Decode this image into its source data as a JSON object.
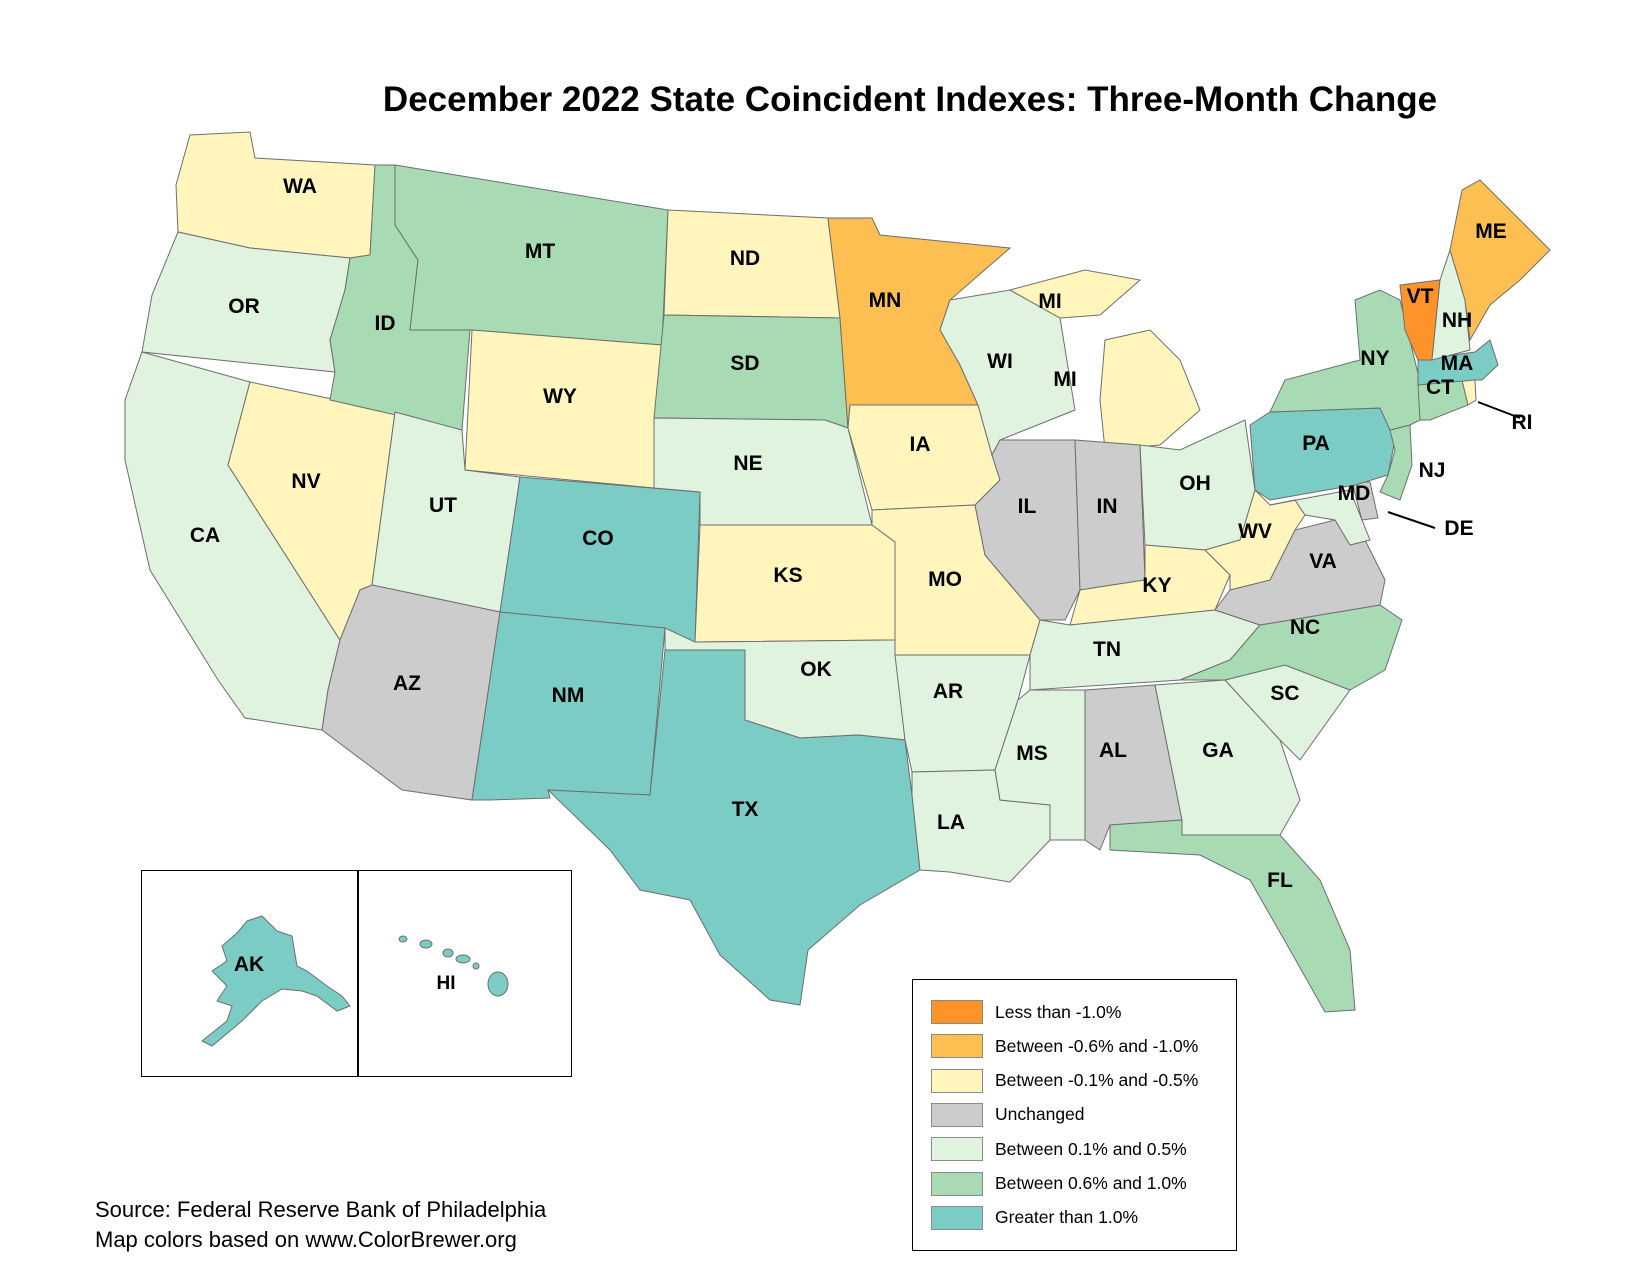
{
  "title": "December 2022 State Coincident Indexes: Three-Month Change",
  "legend": [
    {
      "key": "lt_-1.0",
      "label": "Less than -1.0%",
      "color": "#fd9329"
    },
    {
      "key": "-0.6_-1.0",
      "label": "Between -0.6% and -1.0%",
      "color": "#fdbf51"
    },
    {
      "key": "-0.1_-0.5",
      "label": "Between -0.1% and -0.5%",
      "color": "#fff5bd"
    },
    {
      "key": "unchanged",
      "label": "Unchanged",
      "color": "#cccccc"
    },
    {
      "key": "0.1_0.5",
      "label": "Between 0.1% and 0.5%",
      "color": "#e0f3de"
    },
    {
      "key": "0.6_1.0",
      "label": "Between 0.6% and 1.0%",
      "color": "#a8dbb4"
    },
    {
      "key": "gt_1.0",
      "label": "Greater than 1.0%",
      "color": "#7accc4"
    }
  ],
  "states": [
    {
      "abbr": "WA",
      "category": "-0.1_-0.5"
    },
    {
      "abbr": "OR",
      "category": "0.1_0.5"
    },
    {
      "abbr": "CA",
      "category": "0.1_0.5"
    },
    {
      "abbr": "NV",
      "category": "-0.1_-0.5"
    },
    {
      "abbr": "ID",
      "category": "0.6_1.0"
    },
    {
      "abbr": "MT",
      "category": "0.6_1.0"
    },
    {
      "abbr": "WY",
      "category": "-0.1_-0.5"
    },
    {
      "abbr": "UT",
      "category": "0.1_0.5"
    },
    {
      "abbr": "AZ",
      "category": "unchanged"
    },
    {
      "abbr": "CO",
      "category": "gt_1.0"
    },
    {
      "abbr": "NM",
      "category": "gt_1.0"
    },
    {
      "abbr": "ND",
      "category": "-0.1_-0.5"
    },
    {
      "abbr": "SD",
      "category": "0.6_1.0"
    },
    {
      "abbr": "NE",
      "category": "0.1_0.5"
    },
    {
      "abbr": "KS",
      "category": "-0.1_-0.5"
    },
    {
      "abbr": "OK",
      "category": "0.1_0.5"
    },
    {
      "abbr": "TX",
      "category": "gt_1.0"
    },
    {
      "abbr": "MN",
      "category": "-0.6_-1.0"
    },
    {
      "abbr": "IA",
      "category": "-0.1_-0.5"
    },
    {
      "abbr": "MO",
      "category": "-0.1_-0.5"
    },
    {
      "abbr": "AR",
      "category": "0.1_0.5"
    },
    {
      "abbr": "LA",
      "category": "0.1_0.5"
    },
    {
      "abbr": "WI",
      "category": "0.1_0.5"
    },
    {
      "abbr": "IL",
      "category": "unchanged"
    },
    {
      "abbr": "MI",
      "category": "-0.1_-0.5"
    },
    {
      "abbr": "IN",
      "category": "unchanged"
    },
    {
      "abbr": "OH",
      "category": "0.1_0.5"
    },
    {
      "abbr": "KY",
      "category": "-0.1_-0.5"
    },
    {
      "abbr": "TN",
      "category": "0.1_0.5"
    },
    {
      "abbr": "MS",
      "category": "0.1_0.5"
    },
    {
      "abbr": "AL",
      "category": "unchanged"
    },
    {
      "abbr": "GA",
      "category": "0.1_0.5"
    },
    {
      "abbr": "FL",
      "category": "0.6_1.0"
    },
    {
      "abbr": "SC",
      "category": "0.1_0.5"
    },
    {
      "abbr": "NC",
      "category": "0.6_1.0"
    },
    {
      "abbr": "VA",
      "category": "unchanged"
    },
    {
      "abbr": "WV",
      "category": "-0.1_-0.5"
    },
    {
      "abbr": "MD",
      "category": "0.1_0.5"
    },
    {
      "abbr": "DE",
      "category": "unchanged"
    },
    {
      "abbr": "PA",
      "category": "gt_1.0"
    },
    {
      "abbr": "NJ",
      "category": "0.6_1.0"
    },
    {
      "abbr": "NY",
      "category": "0.6_1.0"
    },
    {
      "abbr": "CT",
      "category": "0.6_1.0"
    },
    {
      "abbr": "RI",
      "category": "-0.1_-0.5"
    },
    {
      "abbr": "MA",
      "category": "gt_1.0"
    },
    {
      "abbr": "VT",
      "category": "lt_-1.0"
    },
    {
      "abbr": "NH",
      "category": "0.1_0.5"
    },
    {
      "abbr": "ME",
      "category": "-0.6_-1.0"
    },
    {
      "abbr": "AK",
      "category": "gt_1.0"
    },
    {
      "abbr": "HI",
      "category": "gt_1.0"
    }
  ],
  "source": {
    "line1": "Source: Federal Reserve Bank of Philadelphia",
    "line2": "Map colors based on www.ColorBrewer.org"
  }
}
